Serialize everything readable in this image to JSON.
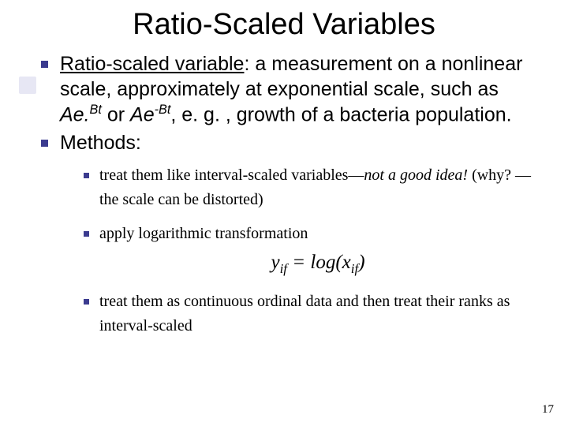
{
  "slide": {
    "title": "Ratio-Scaled Variables",
    "accent_color": "#e7e7f4",
    "bullet_color": "#3b3b8f",
    "body": {
      "p1_lead": "Ratio-scaled variable",
      "p1_rest_a": ": a measurement on a nonlinear scale, approximately at exponential scale, such as ",
      "p1_ae": "Ae.",
      "p1_exp1": "Bt",
      "p1_or": " or ",
      "p1_ae2": "Ae",
      "p1_exp2": "-Bt",
      "p1_rest_b": ", e. g. , growth of a bacteria population.",
      "p2": "Methods:"
    },
    "methods": {
      "m1_a": "treat them like interval-scaled variables—",
      "m1_b": "not a good idea!",
      "m1_c": " (why? —the scale can be distorted)",
      "m2": "apply logarithmic transformation",
      "formula_y": "y",
      "formula_sub1": "if",
      "formula_eq": " = log(x",
      "formula_sub2": "if",
      "formula_close": ")",
      "m3": "treat them as continuous ordinal data and then treat their ranks as interval-scaled"
    },
    "page_number": "17"
  }
}
